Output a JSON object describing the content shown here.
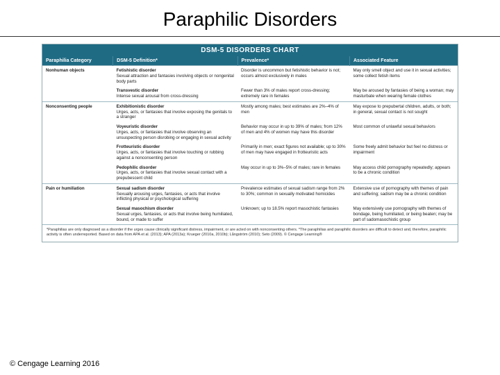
{
  "title": "Paraphilic Disorders",
  "chart_title": "DSM-5 DISORDERS CHART",
  "columns": [
    "Paraphilia Category",
    "DSM-5 Definition*",
    "Prevalence*",
    "Associated Feature"
  ],
  "groups": [
    {
      "category": "Nonhuman objects",
      "rows": [
        {
          "name": "Fetishistic disorder",
          "def": "Sexual attraction and fantasies involving objects or nongenital body parts",
          "prev": "Disorder is uncommon but fetishistic behavior is not; occurs almost exclusively in males",
          "feat": "May only smell object and use it in sexual activities; some collect fetish items"
        },
        {
          "name": "Transvestic disorder",
          "def": "Intense sexual arousal from cross-dressing",
          "prev": "Fewer than 3% of males report cross-dressing; extremely rare in females",
          "feat": "May be aroused by fantasies of being a woman; may masturbate when wearing female clothes"
        }
      ]
    },
    {
      "category": "Nonconsenting people",
      "rows": [
        {
          "name": "Exhibitionistic disorder",
          "def": "Urges, acts, or fantasies that involve exposing the genitals to a stranger",
          "prev": "Mostly among males; best estimates are 2%–4% of men",
          "feat": "May expose to prepubertal children, adults, or both; in general, sexual contact is not sought"
        },
        {
          "name": "Voyeuristic disorder",
          "def": "Urges, acts, or fantasies that involve observing an unsuspecting person disrobing or engaging in sexual activity",
          "prev": "Behavior may occur in up to 39% of males; from 12% of men and 4% of women may have this disorder",
          "feat": "Most common of unlawful sexual behaviors"
        },
        {
          "name": "Frotteuristic disorder",
          "def": "Urges, acts, or fantasies that involve touching or rubbing against a nonconsenting person",
          "prev": "Primarily in men; exact figures not available; up to 30% of men may have engaged in frotteuristic acts",
          "feat": "Some freely admit behavior but feel no distress or impairment"
        },
        {
          "name": "Pedophilic disorder",
          "def": "Urges, acts, or fantasies that involve sexual contact with a prepubescent child",
          "prev": "May occur in up to 3%–5% of males; rare in females",
          "feat": "May access child pornography repeatedly; appears to be a chronic condition"
        }
      ]
    },
    {
      "category": "Pain or humiliation",
      "rows": [
        {
          "name": "Sexual sadism disorder",
          "def": "Sexually arousing urges, fantasies, or acts that involve inflicting physical or psychological suffering",
          "prev": "Prevalence estimates of sexual sadism range from 2% to 30%; common in sexually motivated homicides",
          "feat": "Extensive use of pornography with themes of pain and suffering; sadism may be a chronic condition"
        },
        {
          "name": "Sexual masochism disorder",
          "def": "Sexual urges, fantasies, or acts that involve being humiliated, bound, or made to suffer",
          "prev": "Unknown; up to 18.5% report masochistic fantasies",
          "feat": "May extensively use pornography with themes of bondage, being humiliated, or being beaten; may be part of sadomasochistic group"
        }
      ]
    }
  ],
  "footnote": "*Paraphilias are only diagnosed as a disorder if the urges cause clinically significant distress, impairment, or are acted on with nonconsenting others.\n*The paraphilias and paraphilic disorders are difficult to detect and, therefore, paraphilic activity is often underreported.\nBased on data from APA et al. (2013); APA (2013a); Krueger (2010a, 2010b); Långström (2010); Seto (2009).\n© Cengage Learning®",
  "copyright": "© Cengage Learning 2016",
  "colors": {
    "header_bg": "#1f6b84",
    "border": "#9bb8c1"
  }
}
